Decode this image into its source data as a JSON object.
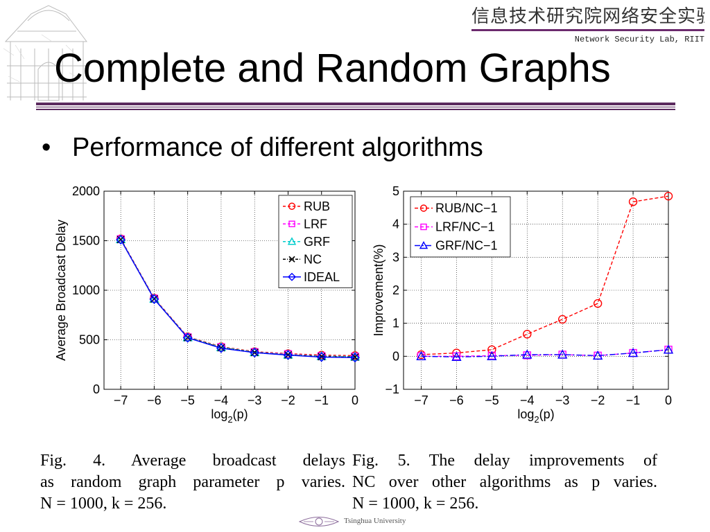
{
  "header": {
    "lab_name_cn": "信息技术研究院网络安全实验室",
    "lab_name_en": "Network Security Lab, RIIT"
  },
  "slide": {
    "title": "Complete and Random Graphs",
    "bullet": "Performance of different algorithms"
  },
  "captions": {
    "fig4": [
      "Fig. 4.     Average  broadcast  delays",
      "as  random  graph  parameter  p  varies.",
      "N = 1000, k = 256."
    ],
    "fig5": [
      "Fig. 5.    The  delay  improvements  of",
      "NC  over  other  algorithms  as  p  varies.",
      "N = 1000, k = 256."
    ]
  },
  "footer": {
    "university": "Tsinghua University"
  },
  "colors": {
    "rub": "#ff0000",
    "lrf": "#ff00ff",
    "grf": "#00cccc",
    "nc": "#000000",
    "ideal": "#0000ff",
    "accent": "#5b2a5e"
  },
  "chart_data": [
    {
      "type": "line",
      "title": "",
      "xlabel": "log2(p)",
      "ylabel": "Average Broadcast Delay",
      "x": [
        -7,
        -6,
        -5,
        -4,
        -3,
        -2,
        -1,
        0
      ],
      "xlim": [
        -7.5,
        0
      ],
      "ylim": [
        0,
        2000
      ],
      "xticks": [
        "−7",
        "−6",
        "−5",
        "−4",
        "−3",
        "−2",
        "−1",
        "0"
      ],
      "yticks": [
        "0",
        "500",
        "1000",
        "1500",
        "2000"
      ],
      "grid": true,
      "legend": "top-right",
      "series": [
        {
          "name": "RUB",
          "color": "#ff0000",
          "marker": "circle",
          "dash": "4,3",
          "values": [
            1520,
            920,
            530,
            430,
            380,
            360,
            345,
            340
          ]
        },
        {
          "name": "LRF",
          "color": "#ff00ff",
          "marker": "square",
          "dash": "4,3",
          "values": [
            1515,
            915,
            525,
            425,
            375,
            355,
            335,
            330
          ]
        },
        {
          "name": "GRF",
          "color": "#00cccc",
          "marker": "triangle",
          "dash": "4,3",
          "values": [
            1515,
            915,
            525,
            425,
            375,
            350,
            335,
            330
          ]
        },
        {
          "name": "NC",
          "color": "#000000",
          "marker": "x",
          "dash": "4,2,1,2",
          "values": [
            1512,
            912,
            522,
            420,
            372,
            347,
            330,
            325
          ]
        },
        {
          "name": "IDEAL",
          "color": "#0000ff",
          "marker": "diamond",
          "dash": "",
          "values": [
            1510,
            910,
            520,
            415,
            370,
            345,
            325,
            320
          ]
        }
      ]
    },
    {
      "type": "line",
      "title": "",
      "xlabel": "log2(p)",
      "ylabel": "Improvement(%)",
      "x": [
        -7,
        -6,
        -5,
        -4,
        -3,
        -2,
        -1,
        0
      ],
      "xlim": [
        -7.5,
        0
      ],
      "ylim": [
        -1,
        5
      ],
      "xticks": [
        "−7",
        "−6",
        "−5",
        "−4",
        "−3",
        "−2",
        "−1",
        "0"
      ],
      "yticks": [
        "−1",
        "0",
        "1",
        "2",
        "3",
        "4",
        "5"
      ],
      "grid": true,
      "legend": "top-left",
      "series": [
        {
          "name": "RUB/NC−1",
          "color": "#ff0000",
          "marker": "circle",
          "dash": "5,3",
          "values": [
            0.05,
            0.1,
            0.2,
            0.67,
            1.12,
            1.6,
            4.68,
            4.85
          ]
        },
        {
          "name": "LRF/NC−1",
          "color": "#ff00ff",
          "marker": "square",
          "dash": "5,3",
          "values": [
            0.0,
            0.0,
            0.02,
            0.03,
            0.05,
            0.02,
            0.1,
            0.2
          ]
        },
        {
          "name": "GRF/NC−1",
          "color": "#0000ff",
          "marker": "triangle",
          "dash": "8,3,2,3",
          "values": [
            0.0,
            -0.02,
            0.0,
            0.05,
            0.05,
            0.02,
            0.1,
            0.2
          ]
        }
      ]
    }
  ]
}
